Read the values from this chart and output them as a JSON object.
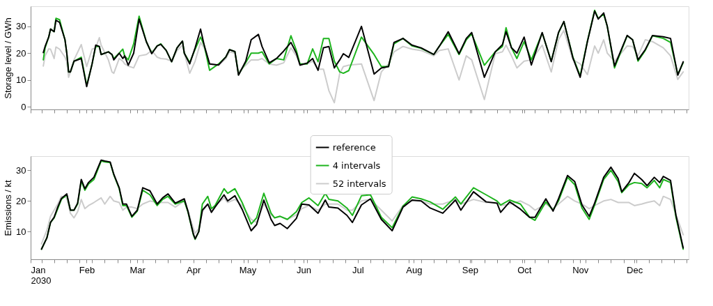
{
  "chart_data": [
    {
      "type": "line",
      "ylabel": "Storage level / GWh",
      "tick_labels": "y",
      "xlim": [
        "2030-01-01",
        "2030-12-31"
      ],
      "ylim": [
        -1,
        37.5
      ],
      "yticks": [
        0,
        10,
        20,
        30
      ],
      "xticks": [
        {
          "value": "2030-01-01",
          "label": null
        },
        {
          "value": "2030-02-01",
          "label": null
        },
        {
          "value": "2030-03-01",
          "label": null
        },
        {
          "value": "2030-04-01",
          "label": null
        },
        {
          "value": "2030-05-01",
          "label": null
        },
        {
          "value": "2030-06-01",
          "label": null
        },
        {
          "value": "2030-07-01",
          "label": null
        },
        {
          "value": "2030-08-01",
          "label": null
        },
        {
          "value": "2030-09-01",
          "label": null
        },
        {
          "value": "2030-10-01",
          "label": null
        },
        {
          "value": "2030-11-01",
          "label": null
        },
        {
          "value": "2030-12-01",
          "label": null
        },
        {
          "value": "2030-01-07",
          "label": null
        },
        {
          "value": "2030-01-14",
          "label": null
        },
        {
          "value": "2030-01-21",
          "label": null
        },
        {
          "value": "2030-01-28",
          "label": null
        },
        {
          "value": "2030-02-04",
          "label": null
        },
        {
          "value": "2030-02-11",
          "label": null
        },
        {
          "value": "2030-02-18",
          "label": null
        },
        {
          "value": "2030-02-25",
          "label": null
        },
        {
          "value": "2030-03-04",
          "label": null
        },
        {
          "value": "2030-03-11",
          "label": null
        },
        {
          "value": "2030-03-18",
          "label": null
        },
        {
          "value": "2030-03-25",
          "label": null
        },
        {
          "value": "2030-04-08",
          "label": null
        },
        {
          "value": "2030-04-15",
          "label": null
        },
        {
          "value": "2030-04-22",
          "label": null
        },
        {
          "value": "2030-04-29",
          "label": null
        },
        {
          "value": "2030-05-06",
          "label": null
        },
        {
          "value": "2030-05-13",
          "label": null
        },
        {
          "value": "2030-05-20",
          "label": null
        },
        {
          "value": "2030-05-27",
          "label": null
        },
        {
          "value": "2030-06-03",
          "label": null
        },
        {
          "value": "2030-06-10",
          "label": null
        },
        {
          "value": "2030-06-17",
          "label": null
        },
        {
          "value": "2030-06-24",
          "label": null
        },
        {
          "value": "2030-07-08",
          "label": null
        },
        {
          "value": "2030-07-15",
          "label": null
        },
        {
          "value": "2030-07-22",
          "label": null
        },
        {
          "value": "2030-07-29",
          "label": null
        },
        {
          "value": "2030-08-05",
          "label": null
        },
        {
          "value": "2030-08-12",
          "label": null
        },
        {
          "value": "2030-08-19",
          "label": null
        },
        {
          "value": "2030-08-26",
          "label": null
        },
        {
          "value": "2030-09-02",
          "label": null
        },
        {
          "value": "2030-09-09",
          "label": null
        },
        {
          "value": "2030-09-16",
          "label": null
        },
        {
          "value": "2030-09-23",
          "label": null
        },
        {
          "value": "2030-09-30",
          "label": null
        },
        {
          "value": "2030-10-07",
          "label": null
        },
        {
          "value": "2030-10-14",
          "label": null
        },
        {
          "value": "2030-10-21",
          "label": null
        },
        {
          "value": "2030-10-28",
          "label": null
        },
        {
          "value": "2030-11-04",
          "label": null
        },
        {
          "value": "2030-11-11",
          "label": null
        },
        {
          "value": "2030-11-18",
          "label": null
        },
        {
          "value": "2030-11-25",
          "label": null
        },
        {
          "value": "2030-12-02",
          "label": null
        },
        {
          "value": "2030-12-09",
          "label": null
        },
        {
          "value": "2030-12-16",
          "label": null
        },
        {
          "value": "2030-12-23",
          "label": null
        },
        {
          "value": "2030-12-30",
          "label": null
        }
      ],
      "x": [
        "2030-01-08",
        "2030-01-09",
        "2030-01-11",
        "2030-01-12",
        "2030-01-14",
        "2030-01-15",
        "2030-01-17",
        "2030-01-20",
        "2030-01-21",
        "2030-01-22",
        "2030-01-23",
        "2030-01-25",
        "2030-01-29",
        "2030-02-01",
        "2030-02-04",
        "2030-02-06",
        "2030-02-08",
        "2030-02-09",
        "2030-02-13",
        "2030-02-15",
        "2030-02-16",
        "2030-02-19",
        "2030-02-21",
        "2030-02-22",
        "2030-02-24",
        "2030-02-27",
        "2030-03-02",
        "2030-03-06",
        "2030-03-09",
        "2030-03-12",
        "2030-03-14",
        "2030-03-17",
        "2030-03-20",
        "2030-03-23",
        "2030-03-26",
        "2030-03-27",
        "2030-03-30",
        "2030-04-02",
        "2030-04-05",
        "2030-04-07",
        "2030-04-10",
        "2030-04-15",
        "2030-04-19",
        "2030-04-21",
        "2030-04-24",
        "2030-04-26",
        "2030-04-30",
        "2030-05-03",
        "2030-05-07",
        "2030-05-09",
        "2030-05-13",
        "2030-05-17",
        "2030-05-21",
        "2030-05-25",
        "2030-05-28",
        "2030-05-30",
        "2030-06-03",
        "2030-06-06",
        "2030-06-09",
        "2030-06-12",
        "2030-06-15",
        "2030-06-18",
        "2030-06-21",
        "2030-06-23",
        "2030-06-26",
        "2030-07-03",
        "2030-07-10",
        "2030-07-14",
        "2030-07-18",
        "2030-07-21",
        "2030-07-26",
        "2030-07-31",
        "2030-08-05",
        "2030-08-12",
        "2030-08-15",
        "2030-08-20",
        "2030-08-26",
        "2030-08-30",
        "2030-09-02",
        "2030-09-09",
        "2030-09-15",
        "2030-09-19",
        "2030-09-21",
        "2030-09-24",
        "2030-09-27",
        "2030-10-01",
        "2030-10-05",
        "2030-10-11",
        "2030-10-16",
        "2030-10-20",
        "2030-10-23",
        "2030-10-28",
        "2030-11-01",
        "2030-11-05",
        "2030-11-09",
        "2030-11-11",
        "2030-11-14",
        "2030-11-16",
        "2030-11-20",
        "2030-11-27",
        "2030-11-30",
        "2030-12-03",
        "2030-12-07",
        "2030-12-11",
        "2030-12-17",
        "2030-12-21",
        "2030-12-25",
        "2030-12-28"
      ],
      "series": [
        {
          "color": "#000000",
          "values": [
            20.2,
            22.5,
            26,
            29,
            28,
            32.3,
            31.5,
            25,
            20,
            13,
            13,
            17,
            18,
            7.5,
            16,
            23,
            22.5,
            19.5,
            20.5,
            19.5,
            17.5,
            20,
            18,
            19,
            15.5,
            20,
            32.7,
            24.3,
            19.8,
            22.7,
            23.3,
            21,
            16.8,
            22,
            24.5,
            20,
            16,
            22,
            29,
            23,
            16,
            15.6,
            18.6,
            21.3,
            20.6,
            11.8,
            17,
            25,
            27,
            22.5,
            16.4,
            18,
            20.8,
            24,
            20,
            15.5,
            16.3,
            18,
            13.6,
            22,
            22.5,
            14.5,
            17.5,
            19.8,
            18.4,
            30,
            12.2,
            14.5,
            15,
            24,
            25.5,
            23,
            22,
            19.5,
            22.5,
            28,
            19.8,
            25.5,
            27.7,
            11,
            20.5,
            23.2,
            28,
            22,
            20,
            26,
            15.6,
            27.7,
            16.8,
            27.7,
            31.8,
            18.2,
            11,
            24.3,
            35.7,
            32.7,
            35,
            30,
            15.2,
            26.6,
            25,
            17.5,
            21.3,
            26.6,
            26.1,
            25.5,
            11.8,
            16.8
          ]
        },
        {
          "color": "#1db41d",
          "values": [
            17.5,
            22,
            26,
            29,
            28,
            33,
            32.5,
            25,
            20,
            13,
            13,
            17,
            18.5,
            8,
            16,
            22.5,
            22.5,
            19.5,
            20.5,
            19.5,
            18,
            20,
            21.5,
            19,
            17.5,
            23.5,
            33.8,
            24.3,
            20,
            22.7,
            23.5,
            21,
            16.8,
            22,
            24.5,
            20,
            16.5,
            21.5,
            26,
            23,
            13.6,
            16,
            18.6,
            21.3,
            20.6,
            12,
            16.5,
            20,
            20,
            20.5,
            16,
            18,
            17.5,
            26.5,
            21,
            16,
            16,
            21.6,
            16.8,
            25.5,
            25.5,
            17,
            13,
            12.5,
            13.5,
            26,
            19.5,
            15,
            15,
            23.5,
            25.5,
            22.7,
            21.8,
            19.5,
            22.5,
            27,
            19.5,
            25,
            27.2,
            15.5,
            20.5,
            22.5,
            29.5,
            22,
            18,
            24.3,
            17.5,
            27.5,
            17,
            27.5,
            31.8,
            18.5,
            11.5,
            24.5,
            36,
            33,
            34.5,
            30,
            14.5,
            26.5,
            25,
            17,
            21,
            26.5,
            25.5,
            24,
            12,
            16.5
          ]
        },
        {
          "color": "#cccccc",
          "values": [
            15.2,
            19,
            21.6,
            21.5,
            18,
            22.3,
            21.5,
            18.5,
            16.8,
            11,
            13,
            17.5,
            23.2,
            15,
            21.5,
            22,
            25.8,
            23,
            17.5,
            13,
            12.5,
            18,
            17,
            16,
            15.2,
            14.5,
            19,
            19.5,
            21,
            18.5,
            18,
            17.8,
            17,
            21,
            23,
            20,
            12.5,
            17,
            24,
            22,
            16,
            15.5,
            18,
            20.5,
            20,
            13,
            15.5,
            17.5,
            17.5,
            18,
            16,
            15.5,
            16.4,
            22,
            19,
            16,
            16,
            17,
            14,
            14,
            6,
            1.5,
            12.5,
            15,
            15.5,
            16,
            2.3,
            13,
            16,
            20.5,
            22.5,
            21.5,
            21,
            19,
            21,
            21.6,
            10,
            19,
            17.5,
            2.7,
            19.8,
            20.5,
            23,
            19,
            14.5,
            17,
            17.5,
            23,
            13,
            25,
            28.5,
            17.5,
            16,
            12,
            22.7,
            20,
            25,
            20,
            17,
            22.7,
            22.5,
            19,
            25,
            24.3,
            22,
            19,
            10.2,
            13
          ]
        }
      ]
    },
    {
      "type": "line",
      "ylabel": "Emissions / kt",
      "legend": "top",
      "xlim": [
        "2030-01-01",
        "2030-12-31"
      ],
      "ylim": [
        1,
        34.6
      ],
      "yticks": [
        10,
        20,
        30
      ],
      "xticks": [
        {
          "value": "2030-01-01",
          "label": "Jan\n2030"
        },
        {
          "value": "2030-02-01",
          "label": "Feb"
        },
        {
          "value": "2030-03-01",
          "label": "Mar"
        },
        {
          "value": "2030-04-01",
          "label": "Apr"
        },
        {
          "value": "2030-05-01",
          "label": "May"
        },
        {
          "value": "2030-06-01",
          "label": "Jun"
        },
        {
          "value": "2030-07-01",
          "label": "Jul"
        },
        {
          "value": "2030-08-01",
          "label": "Aug"
        },
        {
          "value": "2030-09-01",
          "label": "Sep"
        },
        {
          "value": "2030-10-01",
          "label": "Oct"
        },
        {
          "value": "2030-11-01",
          "label": "Nov"
        },
        {
          "value": "2030-12-01",
          "label": "Dec"
        },
        {
          "value": "2030-01-07",
          "label": null
        },
        {
          "value": "2030-01-14",
          "label": null
        },
        {
          "value": "2030-01-21",
          "label": null
        },
        {
          "value": "2030-01-28",
          "label": null
        },
        {
          "value": "2030-02-04",
          "label": null
        },
        {
          "value": "2030-02-11",
          "label": null
        },
        {
          "value": "2030-02-18",
          "label": null
        },
        {
          "value": "2030-02-25",
          "label": null
        },
        {
          "value": "2030-03-04",
          "label": null
        },
        {
          "value": "2030-03-11",
          "label": null
        },
        {
          "value": "2030-03-18",
          "label": null
        },
        {
          "value": "2030-03-25",
          "label": null
        },
        {
          "value": "2030-04-08",
          "label": null
        },
        {
          "value": "2030-04-15",
          "label": null
        },
        {
          "value": "2030-04-22",
          "label": null
        },
        {
          "value": "2030-04-29",
          "label": null
        },
        {
          "value": "2030-05-06",
          "label": null
        },
        {
          "value": "2030-05-13",
          "label": null
        },
        {
          "value": "2030-05-20",
          "label": null
        },
        {
          "value": "2030-05-27",
          "label": null
        },
        {
          "value": "2030-06-03",
          "label": null
        },
        {
          "value": "2030-06-10",
          "label": null
        },
        {
          "value": "2030-06-17",
          "label": null
        },
        {
          "value": "2030-06-24",
          "label": null
        },
        {
          "value": "2030-07-08",
          "label": null
        },
        {
          "value": "2030-07-15",
          "label": null
        },
        {
          "value": "2030-07-22",
          "label": null
        },
        {
          "value": "2030-07-29",
          "label": null
        },
        {
          "value": "2030-08-05",
          "label": null
        },
        {
          "value": "2030-08-12",
          "label": null
        },
        {
          "value": "2030-08-19",
          "label": null
        },
        {
          "value": "2030-08-26",
          "label": null
        },
        {
          "value": "2030-09-02",
          "label": null
        },
        {
          "value": "2030-09-09",
          "label": null
        },
        {
          "value": "2030-09-16",
          "label": null
        },
        {
          "value": "2030-09-23",
          "label": null
        },
        {
          "value": "2030-09-30",
          "label": null
        },
        {
          "value": "2030-10-07",
          "label": null
        },
        {
          "value": "2030-10-14",
          "label": null
        },
        {
          "value": "2030-10-21",
          "label": null
        },
        {
          "value": "2030-10-28",
          "label": null
        },
        {
          "value": "2030-11-04",
          "label": null
        },
        {
          "value": "2030-11-11",
          "label": null
        },
        {
          "value": "2030-11-18",
          "label": null
        },
        {
          "value": "2030-11-25",
          "label": null
        },
        {
          "value": "2030-12-02",
          "label": null
        },
        {
          "value": "2030-12-09",
          "label": null
        },
        {
          "value": "2030-12-16",
          "label": null
        },
        {
          "value": "2030-12-23",
          "label": null
        },
        {
          "value": "2030-12-30",
          "label": null
        }
      ],
      "x": [
        "2030-01-07",
        "2030-01-10",
        "2030-01-12",
        "2030-01-14",
        "2030-01-16",
        "2030-01-18",
        "2030-01-21",
        "2030-01-23",
        "2030-01-25",
        "2030-01-27",
        "2030-01-29",
        "2030-01-31",
        "2030-02-02",
        "2030-02-05",
        "2030-02-09",
        "2030-02-11",
        "2030-02-14",
        "2030-02-16",
        "2030-02-19",
        "2030-02-21",
        "2030-02-23",
        "2030-02-26",
        "2030-03-01",
        "2030-03-04",
        "2030-03-08",
        "2030-03-12",
        "2030-03-15",
        "2030-03-18",
        "2030-03-22",
        "2030-03-27",
        "2030-03-29",
        "2030-04-01",
        "2030-04-02",
        "2030-04-04",
        "2030-04-06",
        "2030-04-09",
        "2030-04-11",
        "2030-04-13",
        "2030-04-18",
        "2030-04-20",
        "2030-04-24",
        "2030-04-28",
        "2030-05-03",
        "2030-05-06",
        "2030-05-10",
        "2030-05-14",
        "2030-05-16",
        "2030-05-19",
        "2030-05-23",
        "2030-05-28",
        "2030-05-31",
        "2030-06-04",
        "2030-06-09",
        "2030-06-13",
        "2030-06-15",
        "2030-06-20",
        "2030-06-25",
        "2030-06-28",
        "2030-07-03",
        "2030-07-08",
        "2030-07-14",
        "2030-07-20",
        "2030-07-26",
        "2030-07-31",
        "2030-08-05",
        "2030-08-10",
        "2030-08-17",
        "2030-08-24",
        "2030-08-27",
        "2030-09-03",
        "2030-09-10",
        "2030-09-16",
        "2030-09-18",
        "2030-09-23",
        "2030-09-29",
        "2030-10-04",
        "2030-10-07",
        "2030-10-13",
        "2030-10-17",
        "2030-10-20",
        "2030-10-25",
        "2030-10-29",
        "2030-11-02",
        "2030-11-06",
        "2030-11-09",
        "2030-11-14",
        "2030-11-18",
        "2030-11-22",
        "2030-11-24",
        "2030-11-28",
        "2030-12-01",
        "2030-12-05",
        "2030-12-08",
        "2030-12-12",
        "2030-12-15",
        "2030-12-17",
        "2030-12-21",
        "2030-12-24",
        "2030-12-28"
      ],
      "series": [
        {
          "name": "reference",
          "color": "#000000",
          "values": [
            4.3,
            8,
            13,
            14.7,
            18,
            20.8,
            22.3,
            17,
            17,
            19.3,
            27,
            24,
            26,
            27.7,
            33.3,
            33,
            32.7,
            28.7,
            24.3,
            19,
            19,
            15,
            17,
            24.3,
            23.3,
            19,
            21,
            22.3,
            19.3,
            20.7,
            16.7,
            9.3,
            7.7,
            10,
            17,
            19,
            16.3,
            18,
            22,
            20,
            21.7,
            17.3,
            10.3,
            12.3,
            20.3,
            14,
            12,
            12.7,
            11,
            14.3,
            19,
            18.7,
            16,
            20.3,
            18,
            17.7,
            15.3,
            13,
            18.7,
            20.7,
            14,
            10.3,
            18,
            20.3,
            20,
            17.7,
            16,
            20.3,
            17,
            23,
            19.7,
            19.3,
            16.3,
            19.7,
            17.3,
            14.7,
            14.7,
            20.7,
            16.7,
            20.7,
            28.3,
            26.3,
            18.7,
            15,
            19.3,
            27.7,
            31,
            27.3,
            23,
            26,
            29,
            27,
            25,
            27.7,
            26,
            28,
            26.7,
            15.3,
            4.7
          ]
        },
        {
          "name": "4 intervals",
          "color": "#1db41d",
          "values": [
            4.3,
            8,
            13,
            14.5,
            17.5,
            20.5,
            22,
            17,
            17,
            19,
            26.5,
            23.5,
            25.5,
            27,
            33,
            32.7,
            32.5,
            28.5,
            24,
            18.5,
            18.5,
            14.7,
            16.7,
            23.5,
            22,
            18.5,
            20.5,
            21.5,
            19,
            20,
            16.5,
            9,
            7.5,
            10,
            19,
            21.5,
            17.5,
            18.5,
            24,
            22.5,
            24,
            19.5,
            12.5,
            14.5,
            22.5,
            16,
            14.5,
            15,
            14,
            16.5,
            19.5,
            21,
            18.5,
            22.5,
            20.5,
            20,
            17.7,
            15.3,
            21.7,
            22,
            14.7,
            11.3,
            18.3,
            21.3,
            20.7,
            19.7,
            17.3,
            21.3,
            19,
            24.3,
            22,
            20,
            18.7,
            20.3,
            19,
            14.7,
            13.7,
            19.7,
            17,
            20,
            27.7,
            25.3,
            17.7,
            14,
            18.7,
            27,
            30,
            26.3,
            22.7,
            25.3,
            26,
            25.7,
            24.3,
            26.7,
            24.3,
            27,
            26,
            14.7,
            4.3
          ]
        },
        {
          "name": "52 intervals",
          "color": "#cccccc",
          "values": [
            6,
            10.5,
            15,
            17,
            19,
            21.5,
            21,
            16,
            14.5,
            16.5,
            20.5,
            17.5,
            18.5,
            19.5,
            21,
            19,
            21.5,
            20,
            19.5,
            17,
            18,
            18,
            17.5,
            19,
            20,
            19.5,
            19.5,
            19.5,
            18,
            20,
            17,
            11,
            9.5,
            11,
            16.5,
            19,
            16.5,
            18.5,
            21,
            19.5,
            20.5,
            18.5,
            14,
            13,
            19,
            15.5,
            14.5,
            15,
            14,
            15.5,
            17.5,
            18.5,
            17,
            19,
            19,
            19,
            17,
            17,
            20,
            20.5,
            17,
            13.5,
            18.5,
            20,
            20,
            19,
            19,
            20.5,
            19,
            20.5,
            19.5,
            19.5,
            18.5,
            19,
            20,
            18.5,
            17,
            19,
            17.5,
            19,
            21.5,
            20,
            19,
            17.5,
            18.5,
            20,
            20.5,
            19.5,
            19.5,
            19.5,
            18.5,
            19,
            19.5,
            20,
            18.5,
            21.5,
            20.5,
            15.5,
            9
          ]
        }
      ]
    }
  ]
}
